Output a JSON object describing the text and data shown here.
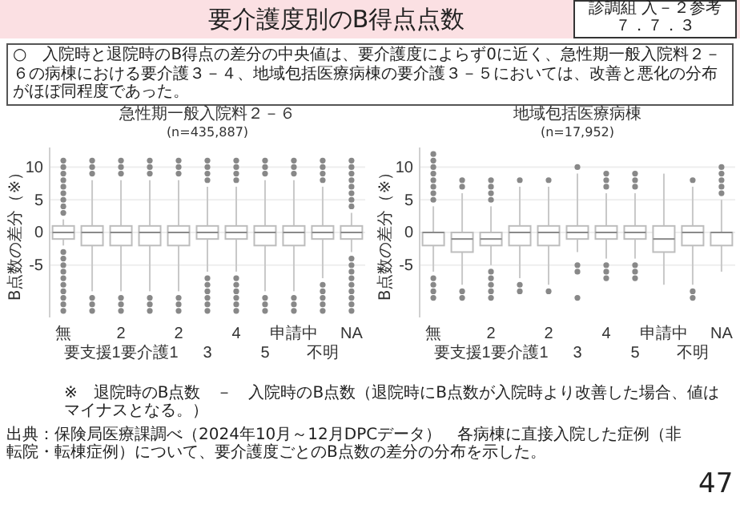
{
  "chart_data": [
    {
      "type": "other",
      "title": "要介護度別のB得点点数",
      "annotations": [
        "診調組 入－２参考",
        "７．７．３",
        "○　入院時と退院時のB得点の差分の中央値は、要介護度によらず0に近く、急性期一般入院料２－６の病棟における要介護３－４、地域包括医療病棟の要介護３－５においては、改善と悪化の分布がほぼ同程度であった。",
        "※　退院時のB点数　－　入院時のB点数（退院時にB点数が入院時より改善した場合、値はマイナスとなる。）",
        "出典：保険局医療課調べ（2024年10月～12月DPCデータ）　各病棟に直接入院した症例（非転院・転棟症例）について、要介護度ごとのB点数の差分の分布を示した。",
        "47"
      ]
    },
    {
      "type": "box",
      "title": "急性期一般入院料２－６",
      "subtitle": "(n=435,887)",
      "ylabel": "B点数の差分（※）",
      "grid": "y",
      "categories": [
        "無",
        "要支援1",
        "2",
        "要介護1",
        "2",
        "3",
        "4",
        "5",
        "申請中",
        "不明",
        "NA"
      ],
      "ylim": [
        -13,
        13
      ],
      "yticks": [
        -5,
        0,
        5,
        10
      ],
      "boxes": [
        {
          "low": -2,
          "q1": -1,
          "median": 0,
          "q3": 1,
          "high": 2,
          "outliers": [
            3,
            4,
            5,
            6,
            7,
            8,
            9,
            10,
            11,
            -3,
            -4,
            -5,
            -6,
            -7,
            -8,
            -9,
            -10,
            -11,
            -12
          ]
        },
        {
          "low": -9,
          "q1": -2,
          "median": 0,
          "q3": 1,
          "high": 8,
          "outliers": [
            9,
            10,
            11,
            -10,
            -11,
            -12
          ]
        },
        {
          "low": -9,
          "q1": -2,
          "median": 0,
          "q3": 1,
          "high": 8,
          "outliers": [
            9,
            10,
            11,
            -10,
            -11,
            -12
          ]
        },
        {
          "low": -9,
          "q1": -2,
          "median": 0,
          "q3": 1,
          "high": 8,
          "outliers": [
            9,
            10,
            11,
            -10,
            -11,
            -12
          ]
        },
        {
          "low": -9,
          "q1": -2,
          "median": 0,
          "q3": 1,
          "high": 8,
          "outliers": [
            9,
            10,
            11,
            -10,
            -11,
            -12
          ]
        },
        {
          "low": -6,
          "q1": -1,
          "median": 0,
          "q3": 1,
          "high": 7,
          "outliers": [
            8,
            9,
            10,
            11,
            -7,
            -8,
            -9,
            -10,
            -11,
            -12
          ]
        },
        {
          "low": -6,
          "q1": -1,
          "median": 0,
          "q3": 1,
          "high": 7,
          "outliers": [
            8,
            9,
            10,
            11,
            -7,
            -8,
            -9,
            -10,
            -11,
            -12
          ]
        },
        {
          "low": -9,
          "q1": -2,
          "median": 0,
          "q3": 1,
          "high": 8,
          "outliers": [
            9,
            10,
            11,
            -10,
            -11,
            -12
          ]
        },
        {
          "low": -9,
          "q1": -2,
          "median": 0,
          "q3": 1,
          "high": 8,
          "outliers": [
            9,
            10,
            11,
            -10,
            -11,
            -12
          ]
        },
        {
          "low": -7,
          "q1": -1,
          "median": 0,
          "q3": 1,
          "high": 7,
          "outliers": [
            8,
            9,
            10,
            11,
            -8,
            -9,
            -10,
            -11,
            -12
          ]
        },
        {
          "low": -3,
          "q1": -1,
          "median": 0,
          "q3": 1,
          "high": 3,
          "outliers": [
            4,
            5,
            6,
            7,
            8,
            9,
            10,
            11,
            -4,
            -5,
            -6,
            -7,
            -8,
            -9,
            -10,
            -11,
            -12
          ]
        }
      ]
    },
    {
      "type": "box",
      "title": "地域包括医療病棟",
      "subtitle": "(n=17,952)",
      "ylabel": "B点数の差分（※）",
      "grid": "y",
      "categories": [
        "無",
        "要支援1",
        "2",
        "要介護1",
        "2",
        "3",
        "4",
        "5",
        "申請中",
        "不明",
        "NA"
      ],
      "ylim": [
        -13,
        13
      ],
      "yticks": [
        -5,
        0,
        5,
        10
      ],
      "boxes": [
        {
          "low": -6,
          "q1": -2,
          "median": 0,
          "q3": 0,
          "high": 4,
          "outliers": [
            5,
            6,
            7,
            8,
            9,
            10,
            11,
            12,
            -7,
            -8,
            -9,
            -10
          ]
        },
        {
          "low": -8,
          "q1": -3,
          "median": -1,
          "q3": 0,
          "high": 6,
          "outliers": [
            7,
            8,
            -9,
            -10
          ]
        },
        {
          "low": -5,
          "q1": -2,
          "median": -1,
          "q3": 0,
          "high": 4,
          "outliers": [
            5,
            6,
            7,
            8,
            -6,
            -7,
            -8,
            -9,
            -10
          ]
        },
        {
          "low": -7,
          "q1": -2,
          "median": 0,
          "q3": 1,
          "high": 7,
          "outliers": [
            8,
            -8,
            -9
          ]
        },
        {
          "low": -8,
          "q1": -2,
          "median": 0,
          "q3": 1,
          "high": 7,
          "outliers": [
            8,
            -9
          ]
        },
        {
          "low": -3,
          "q1": -1,
          "median": 0,
          "q3": 1,
          "high": 9,
          "outliers": [
            10,
            -5,
            -6,
            -10
          ]
        },
        {
          "low": -4,
          "q1": -1,
          "median": 0,
          "q3": 1,
          "high": 6,
          "outliers": [
            7,
            8,
            9,
            -5,
            -6,
            -7
          ]
        },
        {
          "low": -4,
          "q1": -1,
          "median": 0,
          "q3": 1,
          "high": 6,
          "outliers": [
            7,
            8,
            9,
            -5,
            -6,
            -7
          ]
        },
        {
          "low": -8,
          "q1": -3,
          "median": -1,
          "q3": 1,
          "high": 9
        },
        {
          "low": -8,
          "q1": -2,
          "median": 0,
          "q3": 1,
          "high": 7,
          "outliers": [
            8,
            -9,
            -10
          ]
        },
        {
          "low": -6,
          "q1": -2,
          "median": 0,
          "q3": 0,
          "high": 5,
          "outliers": [
            6,
            7,
            8,
            9,
            10
          ]
        }
      ]
    }
  ]
}
